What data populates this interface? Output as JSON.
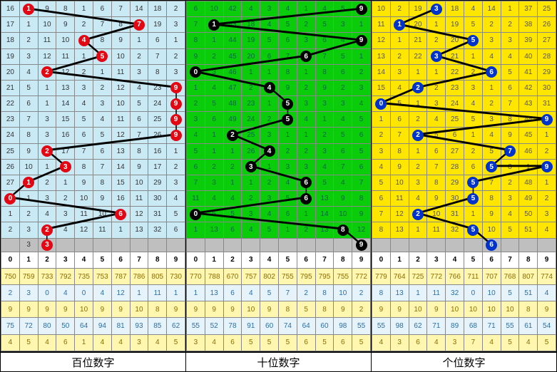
{
  "panels": [
    {
      "name": "hundreds",
      "label": "百位数字",
      "cls": "blue",
      "lineColor": "#000",
      "grid": [
        [
          16,
          "M1",
          9,
          8,
          1,
          6,
          7,
          14,
          18,
          2
        ],
        [
          17,
          1,
          10,
          9,
          2,
          7,
          8,
          "M7",
          19,
          3
        ],
        [
          18,
          2,
          11,
          10,
          "M4",
          8,
          9,
          1,
          6,
          1
        ],
        [
          19,
          3,
          12,
          11,
          1,
          "M5",
          10,
          2,
          7,
          2
        ],
        [
          20,
          4,
          "M2",
          12,
          2,
          1,
          11,
          3,
          8,
          3
        ],
        [
          21,
          5,
          1,
          13,
          3,
          2,
          12,
          4,
          23,
          "M9"
        ],
        [
          22,
          6,
          1,
          14,
          4,
          3,
          10,
          5,
          24,
          "M9"
        ],
        [
          23,
          7,
          3,
          15,
          5,
          4,
          11,
          6,
          25,
          "M9"
        ],
        [
          24,
          8,
          3,
          16,
          6,
          5,
          12,
          7,
          26,
          "M9"
        ],
        [
          25,
          9,
          "M2",
          17,
          7,
          6,
          13,
          8,
          16,
          1
        ],
        [
          26,
          10,
          1,
          "M3",
          8,
          7,
          14,
          9,
          17,
          2
        ],
        [
          27,
          "M1",
          2,
          1,
          9,
          8,
          15,
          10,
          29,
          3
        ],
        [
          "M0",
          1,
          3,
          2,
          10,
          9,
          16,
          11,
          30,
          4
        ],
        [
          1,
          2,
          4,
          3,
          11,
          10,
          "M6",
          12,
          31,
          5
        ],
        [
          2,
          3,
          "M2",
          4,
          12,
          11,
          1,
          13,
          32,
          6
        ],
        [
          "",
          3,
          "M3",
          "",
          "",
          "",
          "",
          "",
          "",
          ""
        ]
      ],
      "header": [
        0,
        1,
        2,
        3,
        4,
        5,
        6,
        7,
        8,
        9
      ],
      "sums": [
        [
          750,
          759,
          733,
          792,
          735,
          753,
          787,
          786,
          805,
          730
        ],
        [
          2,
          3,
          0,
          4,
          0,
          4,
          12,
          1,
          11,
          1
        ],
        [
          9,
          9,
          9,
          9,
          10,
          9,
          9,
          10,
          8,
          9
        ],
        [
          75,
          72,
          80,
          50,
          64,
          94,
          81,
          93,
          85,
          62
        ],
        [
          4,
          5,
          4,
          6,
          1,
          4,
          4,
          3,
          4,
          5
        ]
      ]
    },
    {
      "name": "tens",
      "label": "十位数字",
      "cls": "green",
      "lineColor": "#000",
      "grid": [
        [
          6,
          10,
          42,
          4,
          3,
          4,
          1,
          4,
          5,
          "M9"
        ],
        [
          7,
          "M1",
          43,
          18,
          4,
          5,
          2,
          5,
          3,
          1
        ],
        [
          8,
          1,
          44,
          19,
          5,
          6,
          3,
          6,
          4,
          "M9"
        ],
        [
          9,
          2,
          45,
          20,
          6,
          7,
          "M6",
          7,
          5,
          1
        ],
        [
          "M0",
          3,
          46,
          1,
          1,
          8,
          1,
          8,
          6,
          2
        ],
        [
          1,
          4,
          47,
          2,
          "M4",
          9,
          2,
          9,
          2,
          3
        ],
        [
          2,
          5,
          48,
          23,
          1,
          "M5",
          3,
          3,
          3,
          4
        ],
        [
          3,
          6,
          49,
          24,
          2,
          "M5",
          4,
          1,
          4,
          5
        ],
        [
          4,
          1,
          "M2",
          25,
          3,
          1,
          1,
          2,
          5,
          6
        ],
        [
          5,
          1,
          1,
          26,
          "M4",
          2,
          2,
          3,
          6,
          5
        ],
        [
          6,
          2,
          2,
          "M3",
          1,
          3,
          3,
          4,
          7,
          6
        ],
        [
          7,
          3,
          1,
          1,
          2,
          4,
          "M6",
          5,
          4,
          7
        ],
        [
          11,
          4,
          4,
          2,
          3,
          5,
          "M6",
          13,
          9,
          8
        ],
        [
          "M0",
          5,
          5,
          3,
          4,
          6,
          1,
          14,
          10,
          9
        ],
        [
          1,
          13,
          6,
          4,
          5,
          1,
          2,
          13,
          "M8",
          12
        ],
        [
          "",
          "",
          "",
          "",
          "",
          "",
          "",
          "",
          "",
          "M9"
        ]
      ],
      "header": [
        0,
        1,
        2,
        3,
        4,
        5,
        6,
        7,
        8,
        9
      ],
      "sums": [
        [
          770,
          788,
          670,
          757,
          802,
          755,
          795,
          795,
          755,
          772
        ],
        [
          1,
          13,
          6,
          4,
          5,
          7,
          2,
          8,
          10,
          2
        ],
        [
          9,
          9,
          9,
          10,
          9,
          8,
          5,
          8,
          9,
          2
        ],
        [
          55,
          52,
          78,
          91,
          60,
          74,
          64,
          60,
          98,
          55
        ],
        [
          3,
          4,
          6,
          5,
          5,
          5,
          6,
          5,
          6,
          5
        ]
      ]
    },
    {
      "name": "ones",
      "label": "个位数字",
      "cls": "yellow",
      "lineColor": "#000",
      "grid": [
        [
          10,
          2,
          19,
          "M3",
          18,
          4,
          14,
          1,
          37,
          25
        ],
        [
          11,
          "M1",
          20,
          1,
          19,
          5,
          2,
          2,
          38,
          26
        ],
        [
          12,
          1,
          21,
          2,
          20,
          "M5",
          3,
          3,
          39,
          27
        ],
        [
          13,
          2,
          22,
          "M3",
          21,
          1,
          4,
          4,
          40,
          28
        ],
        [
          14,
          3,
          1,
          1,
          22,
          2,
          "M6",
          5,
          41,
          29
        ],
        [
          15,
          4,
          "M2",
          2,
          23,
          3,
          1,
          6,
          42,
          30
        ],
        [
          "M0",
          5,
          1,
          3,
          24,
          4,
          2,
          7,
          43,
          31
        ],
        [
          1,
          6,
          2,
          4,
          25,
          5,
          3,
          8,
          44,
          "M9"
        ],
        [
          2,
          7,
          "M2",
          5,
          6,
          1,
          4,
          9,
          45,
          1
        ],
        [
          3,
          8,
          1,
          6,
          27,
          2,
          5,
          "M7",
          46,
          2
        ],
        [
          4,
          9,
          2,
          7,
          28,
          6,
          "M5",
          8,
          1,
          "M9"
        ],
        [
          5,
          10,
          3,
          8,
          29,
          "M5",
          7,
          2,
          48,
          1
        ],
        [
          6,
          11,
          4,
          9,
          30,
          "M5",
          8,
          3,
          49,
          2
        ],
        [
          7,
          12,
          "M2",
          10,
          31,
          1,
          9,
          4,
          50,
          3
        ],
        [
          8,
          13,
          1,
          11,
          32,
          "M5",
          10,
          5,
          51,
          4
        ],
        [
          "",
          "",
          "",
          "",
          "",
          "",
          "M6",
          "",
          "",
          ""
        ]
      ],
      "header": [
        0,
        1,
        2,
        3,
        4,
        5,
        6,
        7,
        8,
        9
      ],
      "sums": [
        [
          779,
          764,
          725,
          772,
          766,
          711,
          707,
          768,
          807,
          774
        ],
        [
          8,
          13,
          1,
          11,
          32,
          0,
          10,
          5,
          51,
          4
        ],
        [
          9,
          9,
          10,
          9,
          10,
          10,
          10,
          10,
          8,
          9
        ],
        [
          55,
          98,
          62,
          71,
          89,
          68,
          71,
          55,
          61,
          54
        ],
        [
          4,
          3,
          6,
          4,
          3,
          7,
          4,
          5,
          4,
          5
        ]
      ]
    }
  ]
}
